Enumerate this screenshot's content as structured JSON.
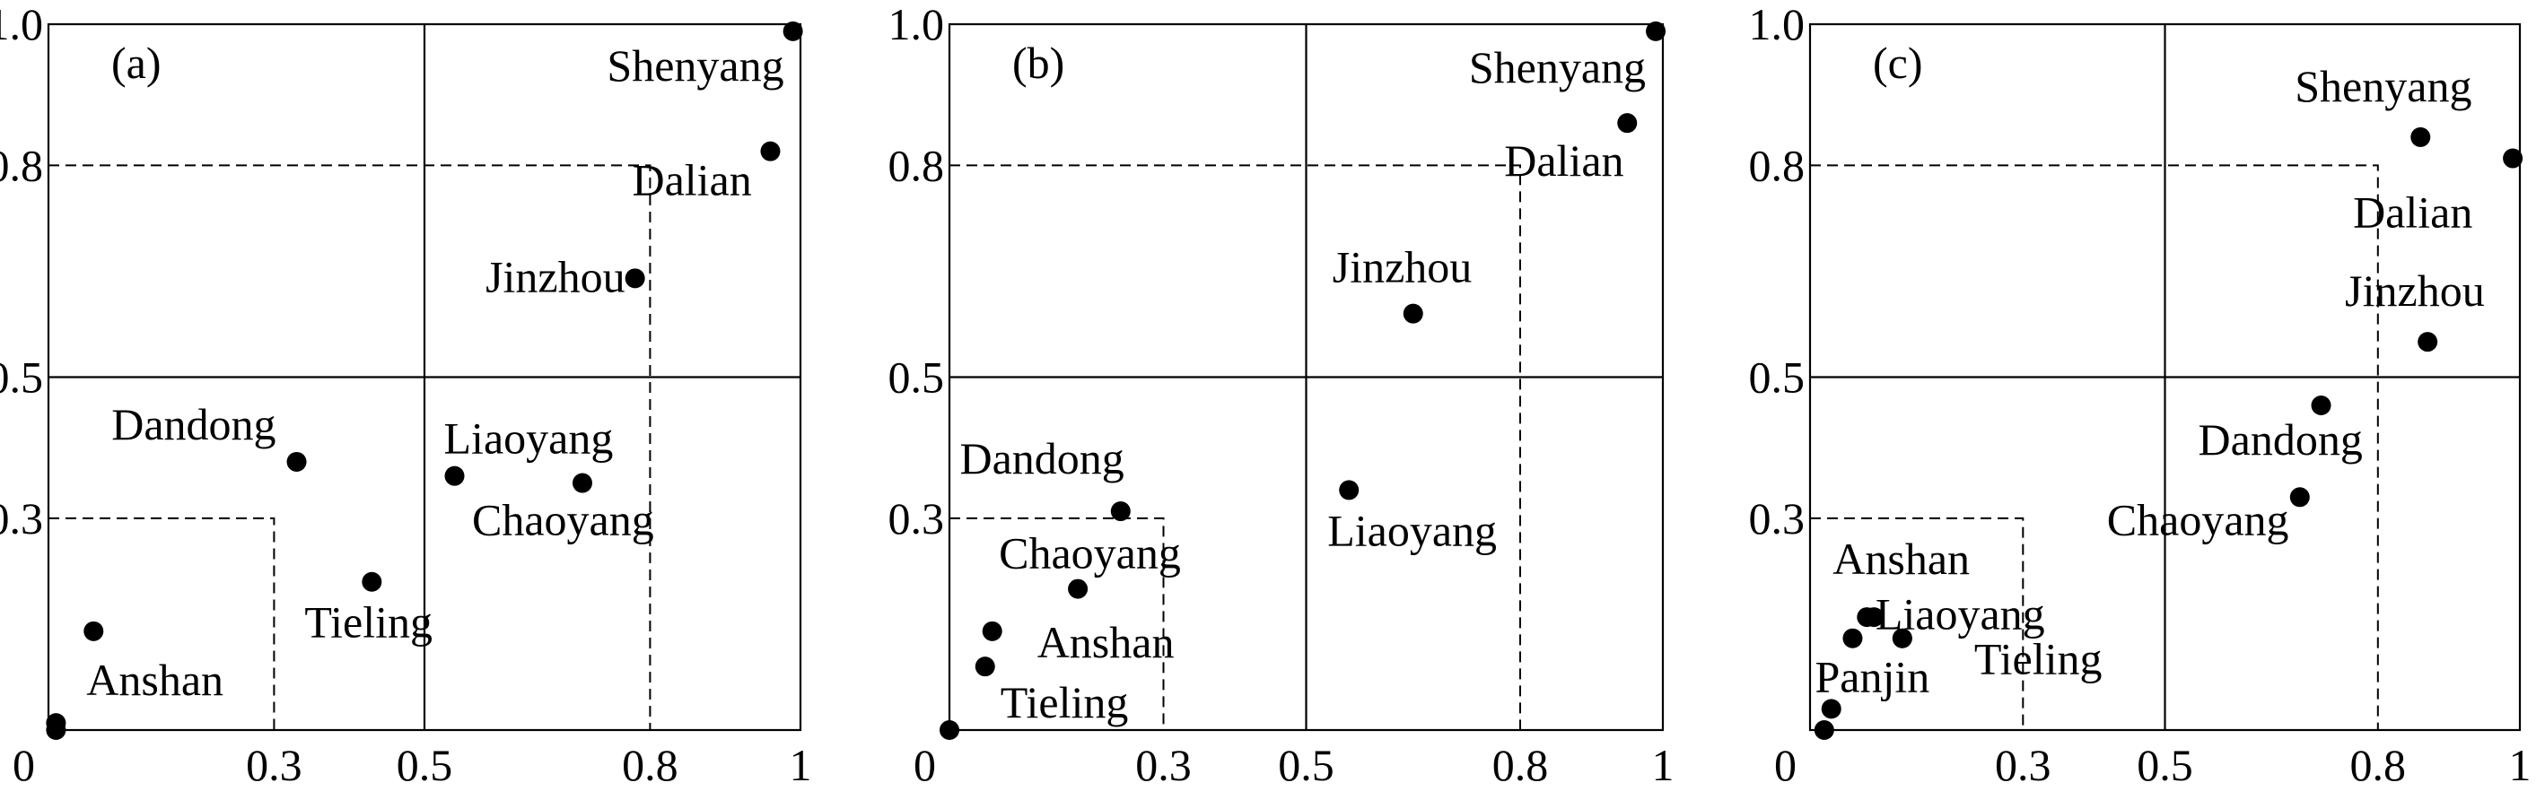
{
  "chart_data": [
    {
      "type": "scatter",
      "panel_label": "(a)",
      "xlim": [
        0,
        1
      ],
      "ylim": [
        0,
        1
      ],
      "x_ticks": [
        "0",
        "0.3",
        "0.5",
        "0.8",
        "1"
      ],
      "y_ticks": [
        "1.0",
        "0.8",
        "0.5",
        "0.3"
      ],
      "solid_lines": {
        "x": 0.5,
        "y": 0.5
      },
      "dashed_boxes": [
        {
          "x": 0.3,
          "y": 0.3
        },
        {
          "x": 0.8,
          "y": 0.8
        }
      ],
      "points": [
        {
          "name": "Shenyang",
          "x": 0.99,
          "y": 0.99
        },
        {
          "name": "Dalian",
          "x": 0.96,
          "y": 0.82
        },
        {
          "name": "Jinzhou",
          "x": 0.78,
          "y": 0.64
        },
        {
          "name": "Dandong",
          "x": 0.33,
          "y": 0.38
        },
        {
          "name": "Liaoyang",
          "x": 0.54,
          "y": 0.36
        },
        {
          "name": "Chaoyang",
          "x": 0.71,
          "y": 0.35
        },
        {
          "name": "Tieling",
          "x": 0.43,
          "y": 0.21
        },
        {
          "name": "Anshan",
          "x": 0.06,
          "y": 0.14
        },
        {
          "name": "",
          "x": 0.01,
          "y": 0.01
        },
        {
          "name": "",
          "x": 0.01,
          "y": 0.0
        }
      ]
    },
    {
      "type": "scatter",
      "panel_label": "(b)",
      "xlim": [
        0,
        1
      ],
      "ylim": [
        0,
        1
      ],
      "x_ticks": [
        "0",
        "0.3",
        "0.5",
        "0.8",
        "1"
      ],
      "y_ticks": [
        "1.0",
        "0.8",
        "0.5",
        "0.3"
      ],
      "solid_lines": {
        "x": 0.5,
        "y": 0.5
      },
      "dashed_boxes": [
        {
          "x": 0.3,
          "y": 0.3
        },
        {
          "x": 0.8,
          "y": 0.8
        }
      ],
      "points": [
        {
          "name": "Shenyang",
          "x": 0.99,
          "y": 0.99
        },
        {
          "name": "Dalian",
          "x": 0.95,
          "y": 0.86
        },
        {
          "name": "Jinzhou",
          "x": 0.65,
          "y": 0.59
        },
        {
          "name": "Liaoyang",
          "x": 0.56,
          "y": 0.34
        },
        {
          "name": "Dandong",
          "x": 0.24,
          "y": 0.31
        },
        {
          "name": "Chaoyang",
          "x": 0.18,
          "y": 0.2
        },
        {
          "name": "Anshan",
          "x": 0.06,
          "y": 0.14
        },
        {
          "name": "Tieling",
          "x": 0.05,
          "y": 0.09
        },
        {
          "name": "",
          "x": 0.0,
          "y": 0.0
        }
      ]
    },
    {
      "type": "scatter",
      "panel_label": "(c)",
      "xlim": [
        0,
        1
      ],
      "ylim": [
        0,
        1
      ],
      "x_ticks": [
        "0",
        "0.3",
        "0.5",
        "0.8",
        "1"
      ],
      "y_ticks": [
        "1.0",
        "0.8",
        "0.5",
        "0.3"
      ],
      "solid_lines": {
        "x": 0.5,
        "y": 0.5
      },
      "dashed_boxes": [
        {
          "x": 0.3,
          "y": 0.3
        },
        {
          "x": 0.8,
          "y": 0.8
        }
      ],
      "points": [
        {
          "name": "Shenyang",
          "x": 0.86,
          "y": 0.84
        },
        {
          "name": "Dalian",
          "x": 0.99,
          "y": 0.81
        },
        {
          "name": "Jinzhou",
          "x": 0.87,
          "y": 0.55
        },
        {
          "name": "Dandong",
          "x": 0.72,
          "y": 0.46
        },
        {
          "name": "Chaoyang",
          "x": 0.69,
          "y": 0.33
        },
        {
          "name": "Anshan",
          "x": 0.08,
          "y": 0.16
        },
        {
          "name": "",
          "x": 0.09,
          "y": 0.16
        },
        {
          "name": "Liaoyang",
          "x": 0.13,
          "y": 0.13
        },
        {
          "name": "Tieling",
          "x": 0.13,
          "y": 0.13
        },
        {
          "name": "Panjin",
          "x": 0.06,
          "y": 0.13
        },
        {
          "name": "",
          "x": 0.03,
          "y": 0.03
        },
        {
          "name": "",
          "x": 0.02,
          "y": 0.0
        }
      ]
    }
  ]
}
